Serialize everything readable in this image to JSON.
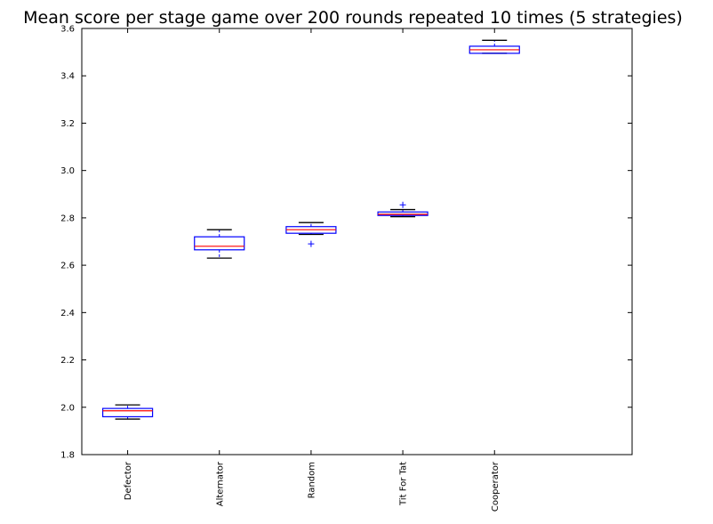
{
  "chart_data": {
    "type": "box",
    "title": "Mean score per stage game over 200 rounds repeated 10 times (5 strategies)",
    "xlabel": "",
    "ylabel": "",
    "ylim": [
      1.8,
      3.6
    ],
    "yticks": [
      1.8,
      2.0,
      2.2,
      2.4,
      2.6,
      2.8,
      3.0,
      3.2,
      3.4,
      3.6
    ],
    "ytick_labels": [
      "1.8",
      "2.0",
      "2.2",
      "2.4",
      "2.6",
      "2.8",
      "3.0",
      "3.2",
      "3.4",
      "3.6"
    ],
    "categories": [
      "Defector",
      "Alternator",
      "Random",
      "Tit For Tat",
      "Cooperator"
    ],
    "boxes": [
      {
        "name": "Defector",
        "whisker_low": 1.95,
        "q1": 1.96,
        "median": 1.985,
        "q3": 1.995,
        "whisker_high": 2.01,
        "outliers": []
      },
      {
        "name": "Alternator",
        "whisker_low": 2.63,
        "q1": 2.665,
        "median": 2.68,
        "q3": 2.72,
        "whisker_high": 2.75,
        "outliers": []
      },
      {
        "name": "Random",
        "whisker_low": 2.73,
        "q1": 2.735,
        "median": 2.75,
        "q3": 2.763,
        "whisker_high": 2.78,
        "outliers": [
          2.69
        ]
      },
      {
        "name": "Tit For Tat",
        "whisker_low": 2.805,
        "q1": 2.81,
        "median": 2.815,
        "q3": 2.825,
        "whisker_high": 2.835,
        "outliers": [
          2.855
        ]
      },
      {
        "name": "Cooperator",
        "whisker_low": 3.495,
        "q1": 3.495,
        "median": 3.51,
        "q3": 3.525,
        "whisker_high": 3.55,
        "outliers": []
      }
    ],
    "grid": false,
    "legend": "none",
    "colors": {
      "box": "#0000ff",
      "median": "#ff0000",
      "whisker": "#000000",
      "outlier": "#0000ff"
    }
  }
}
